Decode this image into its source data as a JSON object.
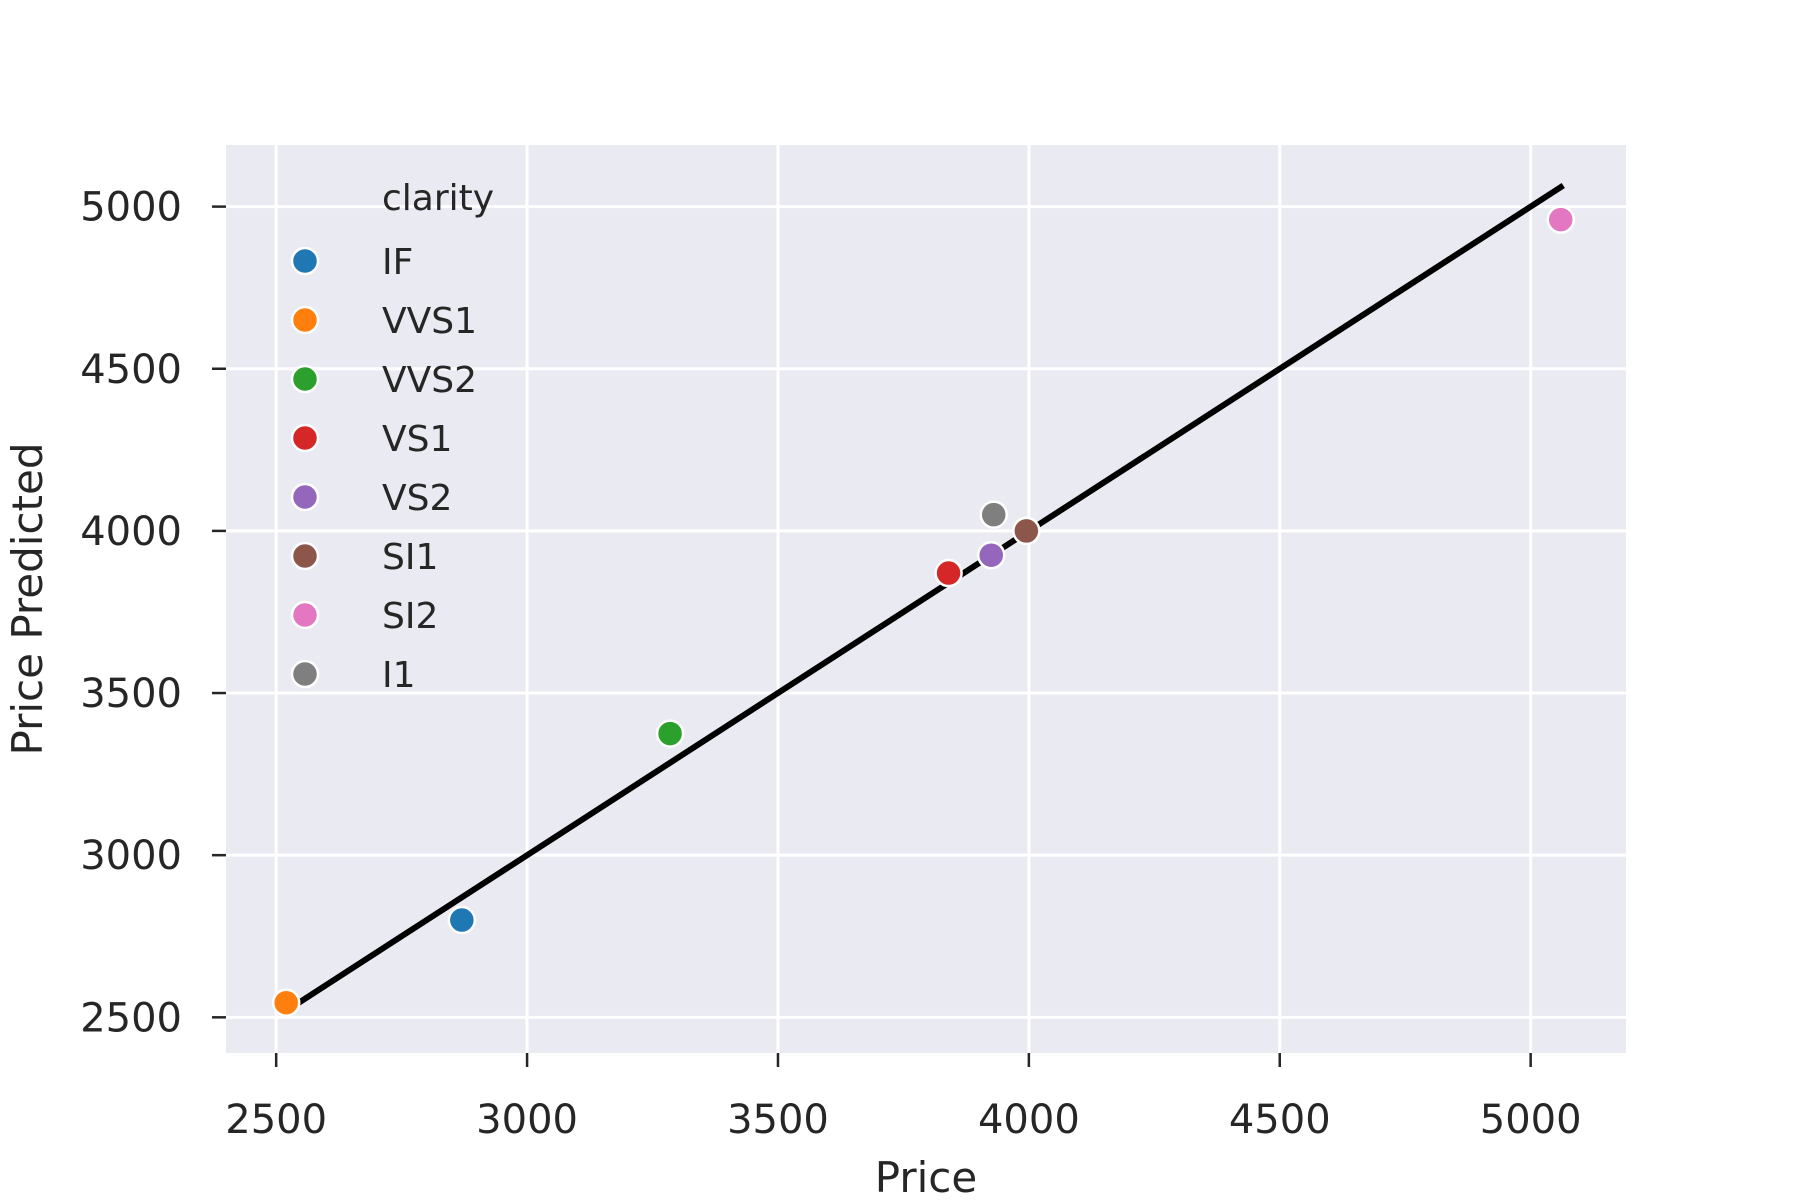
{
  "chart_data": {
    "type": "scatter",
    "xlabel": "Price",
    "ylabel": "Price Predicted",
    "xlim": [
      2400,
      5190
    ],
    "ylim": [
      2390,
      5190
    ],
    "xticks": [
      2500,
      3000,
      3500,
      4000,
      4500,
      5000
    ],
    "yticks": [
      2500,
      3000,
      3500,
      4000,
      4500,
      5000
    ],
    "grid": true,
    "legend": {
      "title": "clarity",
      "placement": "top-left"
    },
    "series": [
      {
        "name": "IF",
        "color": "#1f77b4",
        "points": [
          [
            2870,
            2800
          ]
        ]
      },
      {
        "name": "VVS1",
        "color": "#ff7f0e",
        "points": [
          [
            2520,
            2545
          ]
        ]
      },
      {
        "name": "VVS2",
        "color": "#2ca02c",
        "points": [
          [
            3285,
            3375
          ]
        ]
      },
      {
        "name": "VS1",
        "color": "#d62728",
        "points": [
          [
            3840,
            3870
          ]
        ]
      },
      {
        "name": "VS2",
        "color": "#9467bd",
        "points": [
          [
            3925,
            3925
          ]
        ]
      },
      {
        "name": "SI1",
        "color": "#8c564b",
        "points": [
          [
            3995,
            4000
          ]
        ]
      },
      {
        "name": "SI2",
        "color": "#e377c2",
        "points": [
          [
            5060,
            4960
          ]
        ]
      },
      {
        "name": "I1",
        "color": "#7f7f7f",
        "points": [
          [
            3930,
            4050
          ]
        ]
      }
    ],
    "reference_line": {
      "color": "#000000",
      "points": [
        [
          2520,
          2520
        ],
        [
          5060,
          5060
        ]
      ]
    }
  }
}
